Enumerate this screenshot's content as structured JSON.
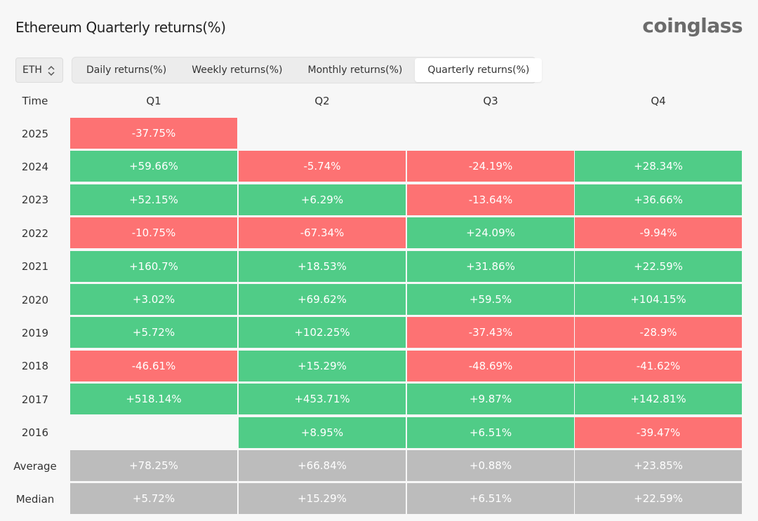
{
  "header": {
    "title": "Ethereum Quarterly returns(%)",
    "brand": "coinglass"
  },
  "controls": {
    "asset": "ETH",
    "tabs": [
      {
        "label": "Daily returns(%)",
        "active": false
      },
      {
        "label": "Weekly returns(%)",
        "active": false
      },
      {
        "label": "Monthly returns(%)",
        "active": false
      },
      {
        "label": "Quarterly returns(%)",
        "active": true
      }
    ]
  },
  "colors": {
    "positive": "#50cc87",
    "negative": "#fd7273",
    "stat": "#bcbcbc"
  },
  "table": {
    "row_header": "Time",
    "columns": [
      "Q1",
      "Q2",
      "Q3",
      "Q4"
    ],
    "rows": [
      {
        "label": "2025",
        "cells": [
          "-37.75%",
          "",
          "",
          ""
        ]
      },
      {
        "label": "2024",
        "cells": [
          "+59.66%",
          "-5.74%",
          "-24.19%",
          "+28.34%"
        ]
      },
      {
        "label": "2023",
        "cells": [
          "+52.15%",
          "+6.29%",
          "-13.64%",
          "+36.66%"
        ]
      },
      {
        "label": "2022",
        "cells": [
          "-10.75%",
          "-67.34%",
          "+24.09%",
          "-9.94%"
        ]
      },
      {
        "label": "2021",
        "cells": [
          "+160.7%",
          "+18.53%",
          "+31.86%",
          "+22.59%"
        ]
      },
      {
        "label": "2020",
        "cells": [
          "+3.02%",
          "+69.62%",
          "+59.5%",
          "+104.15%"
        ]
      },
      {
        "label": "2019",
        "cells": [
          "+5.72%",
          "+102.25%",
          "-37.43%",
          "-28.9%"
        ]
      },
      {
        "label": "2018",
        "cells": [
          "-46.61%",
          "+15.29%",
          "-48.69%",
          "-41.62%"
        ]
      },
      {
        "label": "2017",
        "cells": [
          "+518.14%",
          "+453.71%",
          "+9.87%",
          "+142.81%"
        ]
      },
      {
        "label": "2016",
        "cells": [
          "",
          "+8.95%",
          "+6.51%",
          "-39.47%"
        ]
      }
    ],
    "stats": [
      {
        "label": "Average",
        "cells": [
          "+78.25%",
          "+66.84%",
          "+0.88%",
          "+23.85%"
        ]
      },
      {
        "label": "Median",
        "cells": [
          "+5.72%",
          "+15.29%",
          "+6.51%",
          "+22.59%"
        ]
      }
    ]
  }
}
